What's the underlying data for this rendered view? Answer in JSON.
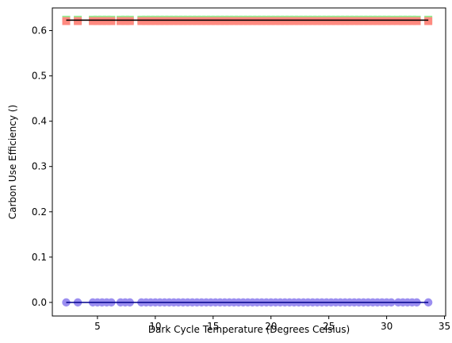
{
  "chart_data": {
    "type": "scatter",
    "xlabel": "Dark Cycle Temperature (Degrees Celsius)",
    "ylabel": "Carbon Use Efficiency ()",
    "xlim": [
      1.1,
      35.1
    ],
    "ylim": [
      -0.03,
      0.65
    ],
    "xticks": [
      5,
      10,
      15,
      20,
      25,
      30,
      35
    ],
    "yticks": [
      0.0,
      0.1,
      0.2,
      0.3,
      0.4,
      0.5,
      0.6
    ],
    "grid": false,
    "series": [
      {
        "marker": "square",
        "color": "#90ee90",
        "y_value": 0.624,
        "x": [
          2.3,
          3.3,
          4.6,
          5.0,
          5.4,
          5.8,
          6.2,
          7.0,
          7.4,
          7.8,
          8.8,
          9.2,
          9.6,
          10.0,
          10.4,
          10.8,
          11.2,
          11.6,
          12.0,
          12.4,
          12.8,
          13.2,
          13.6,
          14.0,
          14.4,
          14.8,
          15.2,
          15.6,
          16.0,
          16.4,
          16.8,
          17.2,
          17.6,
          18.0,
          18.4,
          18.8,
          19.2,
          19.6,
          20.0,
          20.4,
          20.8,
          21.2,
          21.6,
          22.0,
          22.4,
          22.8,
          23.2,
          23.6,
          24.0,
          24.4,
          24.8,
          25.2,
          25.6,
          26.0,
          26.4,
          26.8,
          27.2,
          27.6,
          28.0,
          28.4,
          28.8,
          29.2,
          29.6,
          30.0,
          30.4,
          31.0,
          31.4,
          31.8,
          32.2,
          32.6,
          33.6
        ]
      },
      {
        "marker": "square",
        "color": "#ff8a80",
        "y_value": 0.621,
        "x": [
          2.3,
          3.3,
          4.6,
          5.0,
          5.4,
          5.8,
          6.2,
          7.0,
          7.4,
          7.8,
          8.8,
          9.2,
          9.6,
          10.0,
          10.4,
          10.8,
          11.2,
          11.6,
          12.0,
          12.4,
          12.8,
          13.2,
          13.6,
          14.0,
          14.4,
          14.8,
          15.2,
          15.6,
          16.0,
          16.4,
          16.8,
          17.2,
          17.6,
          18.0,
          18.4,
          18.8,
          19.2,
          19.6,
          20.0,
          20.4,
          20.8,
          21.2,
          21.6,
          22.0,
          22.4,
          22.8,
          23.2,
          23.6,
          24.0,
          24.4,
          24.8,
          25.2,
          25.6,
          26.0,
          26.4,
          26.8,
          27.2,
          27.6,
          28.0,
          28.4,
          28.8,
          29.2,
          29.6,
          30.0,
          30.4,
          31.0,
          31.4,
          31.8,
          32.2,
          32.6,
          33.6
        ]
      },
      {
        "marker": "circle",
        "color": "#9b8ef0",
        "y_value": 0.0,
        "x": [
          2.3,
          3.3,
          4.6,
          5.0,
          5.4,
          5.8,
          6.2,
          7.0,
          7.4,
          7.8,
          8.8,
          9.2,
          9.6,
          10.0,
          10.4,
          10.8,
          11.2,
          11.6,
          12.0,
          12.4,
          12.8,
          13.2,
          13.6,
          14.0,
          14.4,
          14.8,
          15.2,
          15.6,
          16.0,
          16.4,
          16.8,
          17.2,
          17.6,
          18.0,
          18.4,
          18.8,
          19.2,
          19.6,
          20.0,
          20.4,
          20.8,
          21.2,
          21.6,
          22.0,
          22.4,
          22.8,
          23.2,
          23.6,
          24.0,
          24.4,
          24.8,
          25.2,
          25.6,
          26.0,
          26.4,
          26.8,
          27.2,
          27.6,
          28.0,
          28.4,
          28.8,
          29.2,
          29.6,
          30.0,
          30.4,
          31.0,
          31.4,
          31.8,
          32.2,
          32.6,
          33.6
        ]
      }
    ],
    "fit_lines": [
      {
        "color": "#d62728",
        "x": [
          2.3,
          33.6
        ],
        "y": [
          0.623,
          0.623
        ]
      },
      {
        "color": "#000000",
        "x": [
          2.3,
          33.6
        ],
        "y": [
          0.623,
          0.623
        ]
      },
      {
        "color": "#00008b",
        "x": [
          2.3,
          33.6
        ],
        "y": [
          0.0,
          0.0
        ]
      }
    ]
  }
}
